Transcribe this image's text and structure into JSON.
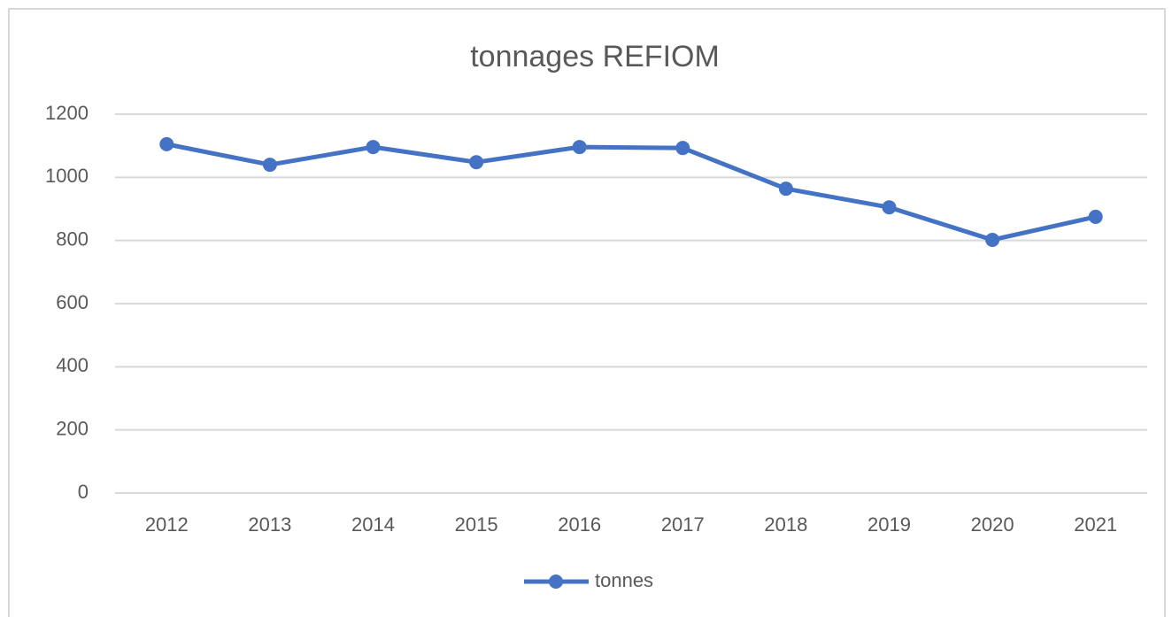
{
  "chart_data": {
    "type": "line",
    "title": "tonnages REFIOM",
    "categories": [
      "2012",
      "2013",
      "2014",
      "2015",
      "2016",
      "2017",
      "2018",
      "2019",
      "2020",
      "2021"
    ],
    "series": [
      {
        "name": "tonnes",
        "color": "#4472c4",
        "values": [
          1105,
          1040,
          1096,
          1048,
          1096,
          1093,
          964,
          905,
          802,
          875
        ]
      }
    ],
    "ylim": [
      0,
      1200
    ],
    "yticks": [
      0,
      200,
      400,
      600,
      800,
      1000,
      1200
    ],
    "grid": true,
    "legend": "bottom"
  }
}
